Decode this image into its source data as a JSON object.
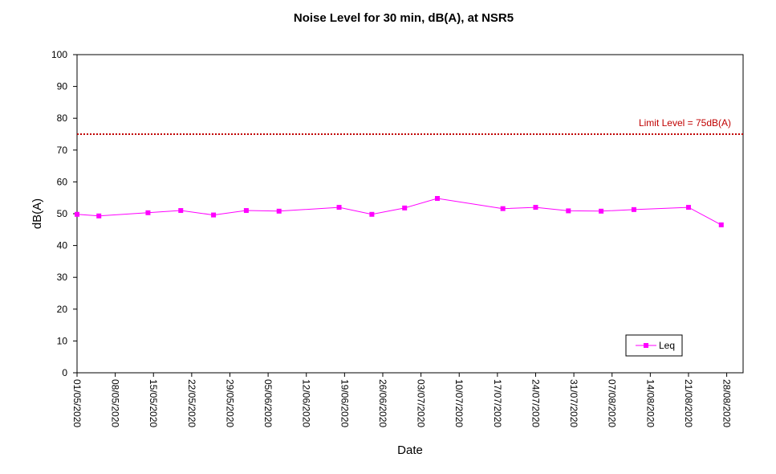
{
  "chart_data": {
    "type": "line",
    "title": "Noise Level for 30 min, dB(A), at NSR5",
    "xlabel": "Date",
    "ylabel": "dB(A)",
    "ylim": [
      0,
      100
    ],
    "yticks": [
      0,
      10,
      20,
      30,
      40,
      50,
      60,
      70,
      80,
      90,
      100
    ],
    "xlim": [
      "2020-05-01",
      "2020-08-31"
    ],
    "xtick_labels": [
      "01/05/2020",
      "08/05/2020",
      "15/05/2020",
      "22/05/2020",
      "29/05/2020",
      "05/06/2020",
      "12/06/2020",
      "19/06/2020",
      "26/06/2020",
      "03/07/2020",
      "10/07/2020",
      "17/07/2020",
      "24/07/2020",
      "31/07/2020",
      "07/08/2020",
      "14/08/2020",
      "21/08/2020",
      "28/08/2020"
    ],
    "grid": false,
    "legend_position": "bottom-right",
    "series": [
      {
        "name": "Leq",
        "color": "#ff00ff",
        "marker": "square",
        "x": [
          "2020-05-01",
          "2020-05-05",
          "2020-05-14",
          "2020-05-20",
          "2020-05-26",
          "2020-06-01",
          "2020-06-07",
          "2020-06-18",
          "2020-06-24",
          "2020-06-30",
          "2020-07-06",
          "2020-07-18",
          "2020-07-24",
          "2020-07-30",
          "2020-08-05",
          "2020-08-11",
          "2020-08-21",
          "2020-08-27"
        ],
        "y": [
          49.8,
          49.3,
          50.3,
          51.0,
          49.6,
          51.0,
          50.8,
          52.0,
          49.8,
          51.8,
          54.8,
          51.6,
          52.0,
          50.9,
          50.8,
          51.3,
          52.0,
          46.5
        ]
      }
    ],
    "reference_line": {
      "value": 75,
      "label": "Limit Level  = 75dB(A)",
      "color": "#c00000",
      "style": "dotted"
    }
  }
}
